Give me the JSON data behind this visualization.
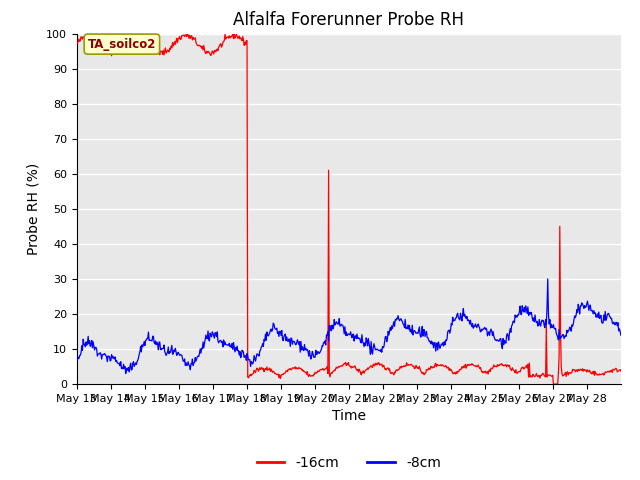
{
  "title": "Alfalfa Forerunner Probe RH",
  "xlabel": "Time",
  "ylabel": "Probe RH (%)",
  "ylim": [
    0,
    100
  ],
  "yticks": [
    0,
    10,
    20,
    30,
    40,
    50,
    60,
    70,
    80,
    90,
    100
  ],
  "xtick_labels": [
    "May 13",
    "May 14",
    "May 15",
    "May 16",
    "May 17",
    "May 18",
    "May 19",
    "May 20",
    "May 21",
    "May 22",
    "May 23",
    "May 24",
    "May 25",
    "May 26",
    "May 27",
    "May 28"
  ],
  "legend_labels": [
    "-16cm",
    "-8cm"
  ],
  "legend_colors": [
    "red",
    "blue"
  ],
  "annotation_text": "TA_soilco2",
  "bg_color": "#e8e8e8",
  "grid_color": "white",
  "title_fontsize": 12,
  "axis_label_fontsize": 10,
  "tick_fontsize": 8,
  "legend_fontsize": 10
}
